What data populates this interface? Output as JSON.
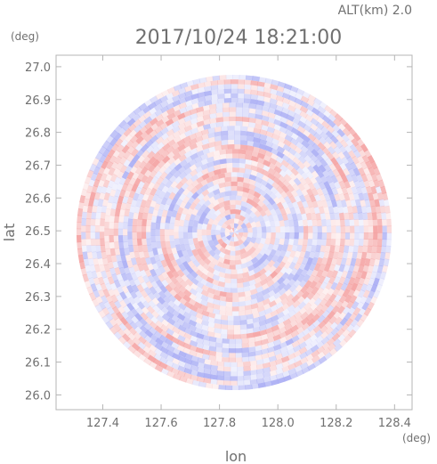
{
  "header": {
    "altitude_label": "ALT(km) 2.0",
    "timestamp": "2017/10/24 18:21:00"
  },
  "colors": {
    "positive": "#f4a0a0",
    "negative": "#a8acf4",
    "frame": "#b4b4b4",
    "text": "#707070"
  },
  "chart_data": {
    "type": "heatmap",
    "title": "2017/10/24 18:21:00",
    "subtitle": "ALT(km) 2.0",
    "xlabel": "lon",
    "ylabel": "lat",
    "xunit": "(deg)",
    "yunit": "(deg)",
    "xlim": [
      127.24,
      128.46
    ],
    "ylim": [
      25.955,
      27.035
    ],
    "xticks": [
      127.4,
      127.6,
      127.8,
      128.0,
      128.2,
      128.4
    ],
    "xtick_labels": [
      "127.4",
      "127.6",
      "127.8",
      "128.0",
      "128.2",
      "128.4"
    ],
    "yticks": [
      26.0,
      26.1,
      26.2,
      26.3,
      26.4,
      26.5,
      26.6,
      26.7,
      26.8,
      26.9,
      27.0
    ],
    "ytick_labels": [
      "26.0",
      "26.1",
      "26.2",
      "26.3",
      "26.4",
      "26.5",
      "26.6",
      "26.7",
      "26.8",
      "26.9",
      "27.0"
    ],
    "radar_center": {
      "lon": 127.85,
      "lat": 26.495
    },
    "radar_radius_deg": 0.54,
    "field_pattern": "alternating positive/negative radial-velocity style bands in a circular radar scan",
    "grid": false
  }
}
